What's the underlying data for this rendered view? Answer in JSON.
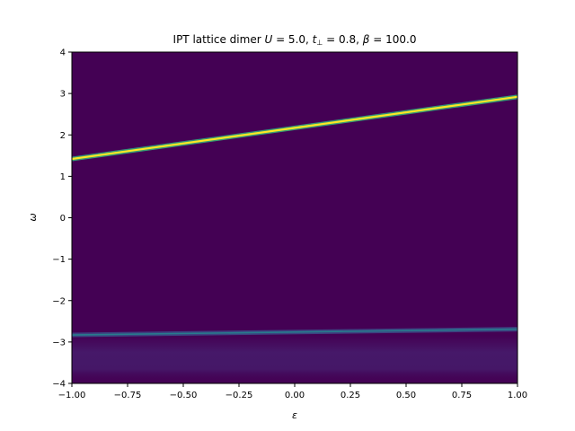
{
  "chart_data": {
    "type": "heatmap",
    "title": "IPT lattice dimer U = 5.0, t⊥ = 0.8, β = 100.0",
    "title_parts": {
      "prefix": "IPT lattice dimer ",
      "U_sym": "U",
      "U_val": " = 5.0, ",
      "t_sym": "t",
      "t_sub": "⊥",
      "t_val": " = 0.8, ",
      "beta_sym": "β",
      "beta_val": " = 100.0"
    },
    "xlabel": "ε",
    "ylabel": "ω",
    "xlim": [
      -1.0,
      1.0
    ],
    "ylim": [
      -4,
      4
    ],
    "x_ticks": [
      -1.0,
      -0.75,
      -0.5,
      -0.25,
      0.0,
      0.25,
      0.5,
      0.75,
      1.0
    ],
    "x_tick_labels": [
      "−1.00",
      "−0.75",
      "−0.50",
      "−0.25",
      "0.00",
      "0.25",
      "0.50",
      "0.75",
      "1.00"
    ],
    "y_ticks": [
      -4,
      -3,
      -2,
      -1,
      0,
      1,
      2,
      3,
      4
    ],
    "y_tick_labels": [
      "−4",
      "−3",
      "−2",
      "−1",
      "0",
      "1",
      "2",
      "3",
      "4"
    ],
    "colormap": "viridis",
    "colors": {
      "background": "#440154",
      "lower_band_glow": "#3b528b",
      "lower_band_core": "#26828e",
      "upper_band_glow": "#35b779",
      "upper_band_core": "#fde725"
    },
    "bands": [
      {
        "name": "upper",
        "x": [
          -1.0,
          1.0
        ],
        "y": [
          1.42,
          2.92
        ],
        "intensity": "high"
      },
      {
        "name": "lower",
        "x": [
          -1.0,
          1.0
        ],
        "y": [
          -2.83,
          -2.69
        ],
        "intensity": "low"
      }
    ],
    "grid": false
  }
}
